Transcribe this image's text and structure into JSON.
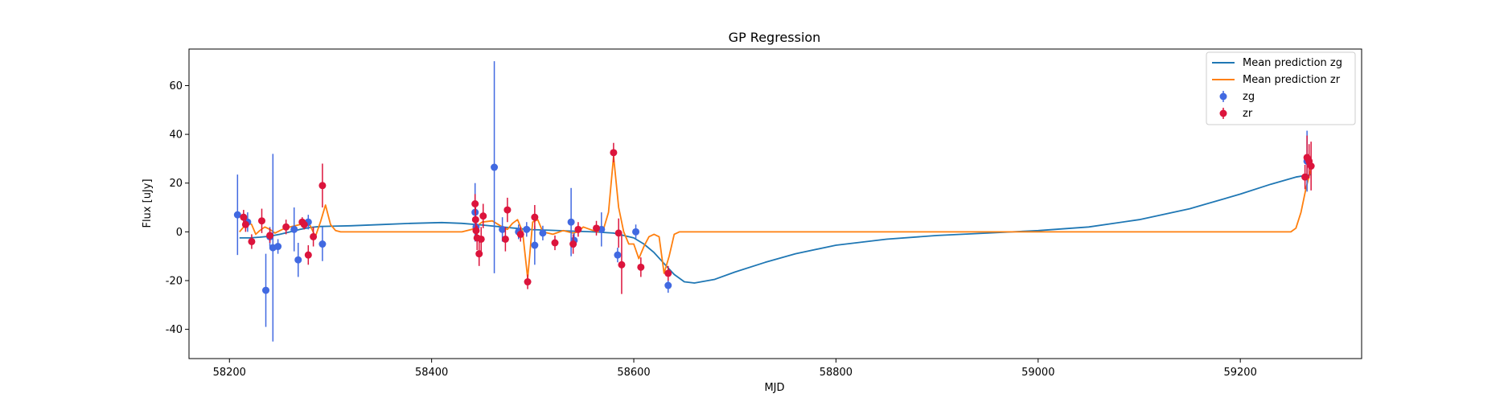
{
  "chart_data": {
    "type": "scatter",
    "title": "GP Regression",
    "xlabel": "MJD",
    "ylabel": "Flux [uJy]",
    "xlim": [
      58160,
      59320
    ],
    "ylim": [
      -52,
      75
    ],
    "xticks": [
      58200,
      58400,
      58600,
      58800,
      59000,
      59200
    ],
    "yticks": [
      -40,
      -20,
      0,
      20,
      40,
      60
    ],
    "grid": false,
    "legend_position": "top-right",
    "series": [
      {
        "name": "Mean prediction zg",
        "kind": "line",
        "color": "#1f77b4",
        "x": [
          58210,
          58220,
          58230,
          58240,
          58250,
          58260,
          58270,
          58280,
          58290,
          58300,
          58320,
          58350,
          58380,
          58410,
          58430,
          58450,
          58470,
          58490,
          58500,
          58520,
          58540,
          58560,
          58580,
          58600,
          58610,
          58620,
          58630,
          58640,
          58650,
          58660,
          58680,
          58700,
          58730,
          58760,
          58800,
          58850,
          58900,
          58950,
          59000,
          59050,
          59100,
          59150,
          59200,
          59230,
          59255,
          59270
        ],
        "values": [
          -2.5,
          -2.5,
          -2.2,
          -1.8,
          -1.0,
          0,
          1.0,
          1.8,
          2.2,
          2.3,
          2.5,
          3.0,
          3.5,
          3.8,
          3.5,
          2.8,
          2.0,
          1.2,
          0.9,
          0.6,
          0.3,
          0,
          -0.5,
          -2.5,
          -5,
          -8.5,
          -13,
          -17.5,
          -20.5,
          -21,
          -19.5,
          -16.5,
          -12.5,
          -9,
          -5.5,
          -3,
          -1.5,
          -0.5,
          0.5,
          2,
          5,
          9.5,
          15.5,
          19.5,
          22.5,
          23.5
        ]
      },
      {
        "name": "Mean prediction zr",
        "kind": "line",
        "color": "#ff7f0e",
        "x": [
          58210,
          58214,
          58218,
          58222,
          58226,
          58230,
          58235,
          58240,
          58245,
          58250,
          58255,
          58260,
          58265,
          58270,
          58275,
          58280,
          58285,
          58290,
          58295,
          58300,
          58305,
          58310,
          58320,
          58400,
          58430,
          58440,
          58445,
          58450,
          58460,
          58470,
          58475,
          58480,
          58485,
          58490,
          58495,
          58500,
          58505,
          58510,
          58520,
          58530,
          58540,
          58545,
          58550,
          58560,
          58565,
          58570,
          58575,
          58580,
          58585,
          58590,
          58595,
          58600,
          58605,
          58610,
          58615,
          58620,
          58625,
          58630,
          58635,
          58640,
          58645,
          58650,
          59250,
          59255,
          59260,
          59265,
          59270
        ],
        "values": [
          0,
          2,
          4,
          3,
          -1,
          0.5,
          2,
          1,
          -0.5,
          0.5,
          1.5,
          2,
          2.5,
          3,
          3.5,
          2.5,
          -2,
          4,
          11,
          3,
          0.5,
          0,
          0,
          0,
          0,
          1,
          2.5,
          4,
          4.5,
          2,
          1,
          3.5,
          5,
          0,
          -19,
          4,
          5,
          0,
          -1,
          0.5,
          -0.5,
          0,
          2,
          0.5,
          0,
          1,
          8,
          31,
          10,
          0,
          -5,
          -5,
          -11,
          -6,
          -2,
          -1,
          -2,
          -17,
          -10,
          -1,
          0,
          0,
          0,
          1.5,
          8,
          18,
          26
        ]
      },
      {
        "name": "zg",
        "kind": "errorbar",
        "color": "#4169e1",
        "x": [
          58208,
          58218,
          58236,
          58240,
          58243,
          58248,
          58264,
          58268,
          58278,
          58292,
          58443,
          58444,
          58462,
          58470,
          58486,
          58494,
          58502,
          58510,
          58538,
          58541,
          58568,
          58584,
          58602,
          58634,
          59266
        ],
        "values": [
          7,
          4,
          -24,
          -2,
          -6.5,
          -6,
          1,
          -11.5,
          4,
          -5,
          8,
          2,
          26.5,
          1,
          0,
          1,
          -5.5,
          -0.5,
          4,
          -3.5,
          1,
          -9.5,
          0,
          -22,
          29
        ],
        "errors": [
          16.5,
          4,
          15,
          4,
          38.5,
          3,
          9,
          7,
          3,
          7,
          12,
          4,
          43.5,
          5,
          3,
          3,
          8,
          3,
          14,
          3,
          7,
          3,
          3,
          3,
          12.5
        ]
      },
      {
        "name": "zr",
        "kind": "errorbar",
        "color": "#dc143c",
        "x": [
          58214,
          58216,
          58222,
          58232,
          58240,
          58256,
          58272,
          58274,
          58278,
          58283,
          58292,
          58443,
          58443.5,
          58444,
          58445,
          58447,
          58449,
          58451,
          58473,
          58475,
          58488,
          58495,
          58502,
          58522,
          58540,
          58545,
          58563,
          58580,
          58585,
          58588,
          58607,
          58634,
          59264,
          59266,
          59268,
          59270
        ],
        "values": [
          6,
          3,
          -4,
          4.5,
          -1.5,
          2,
          4,
          3,
          -9.5,
          -2,
          19,
          11.5,
          5,
          0.5,
          -2.5,
          -9,
          -3,
          6.5,
          -3,
          9,
          -1,
          -20.5,
          6,
          -4.5,
          -5,
          1,
          1.5,
          32.5,
          -0.5,
          -13.5,
          -14.5,
          -17,
          22.5,
          30.5,
          29,
          27
        ],
        "errors": [
          3,
          3,
          3,
          5,
          3,
          3,
          2,
          2,
          4,
          4,
          9,
          4,
          5,
          3,
          5,
          5,
          5,
          5,
          5,
          5,
          3,
          3,
          5,
          3,
          4,
          3,
          3,
          4,
          6,
          12,
          4,
          3,
          5,
          9,
          7,
          10
        ]
      }
    ]
  }
}
